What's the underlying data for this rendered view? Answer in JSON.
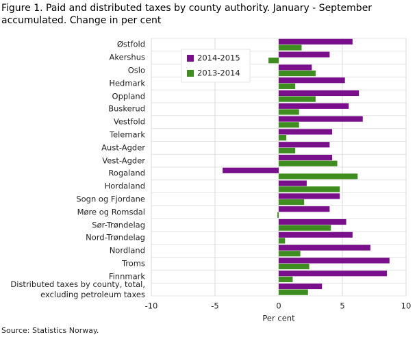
{
  "chart_data": {
    "type": "hbar",
    "title": "Figure 1. Paid and distributed taxes by county authority. January - September accumulated. Change in per cent",
    "x_label": "Per cent",
    "source": "Source: Statistics Norway.",
    "categories": [
      "Østfold",
      "Akershus",
      "Oslo",
      "Hedmark",
      "Oppland",
      "Buskerud",
      "Vestfold",
      "Telemark",
      "Aust-Agder",
      "Vest-Agder",
      "Rogaland",
      "Hordaland",
      "Sogn og Fjordane",
      "Møre og Romsdal",
      "Sør-Trøndelag",
      "Nord-Trøndelag",
      "Nordland",
      "Troms",
      "Finnmark",
      "Distributed taxes by county, total, excluding petroleum taxes"
    ],
    "series": [
      {
        "name": "2014-2015",
        "color": "#7a0f8c",
        "values": [
          5.8,
          4.0,
          2.6,
          5.2,
          6.3,
          5.5,
          6.6,
          4.2,
          4.0,
          4.2,
          -4.4,
          2.2,
          4.8,
          4.0,
          5.3,
          5.8,
          7.2,
          8.7,
          8.5,
          3.4
        ]
      },
      {
        "name": "2013-2014",
        "color": "#3f8d20",
        "values": [
          1.8,
          -0.8,
          2.9,
          1.3,
          2.9,
          1.6,
          1.6,
          0.6,
          1.3,
          4.6,
          6.2,
          4.8,
          2.0,
          -0.1,
          4.1,
          0.5,
          1.7,
          2.4,
          1.1,
          2.3
        ]
      }
    ],
    "xlim": [
      -10,
      10
    ],
    "xticks": [
      -10,
      -5,
      0,
      5,
      10
    ],
    "grid": true,
    "legend": "top-left"
  }
}
